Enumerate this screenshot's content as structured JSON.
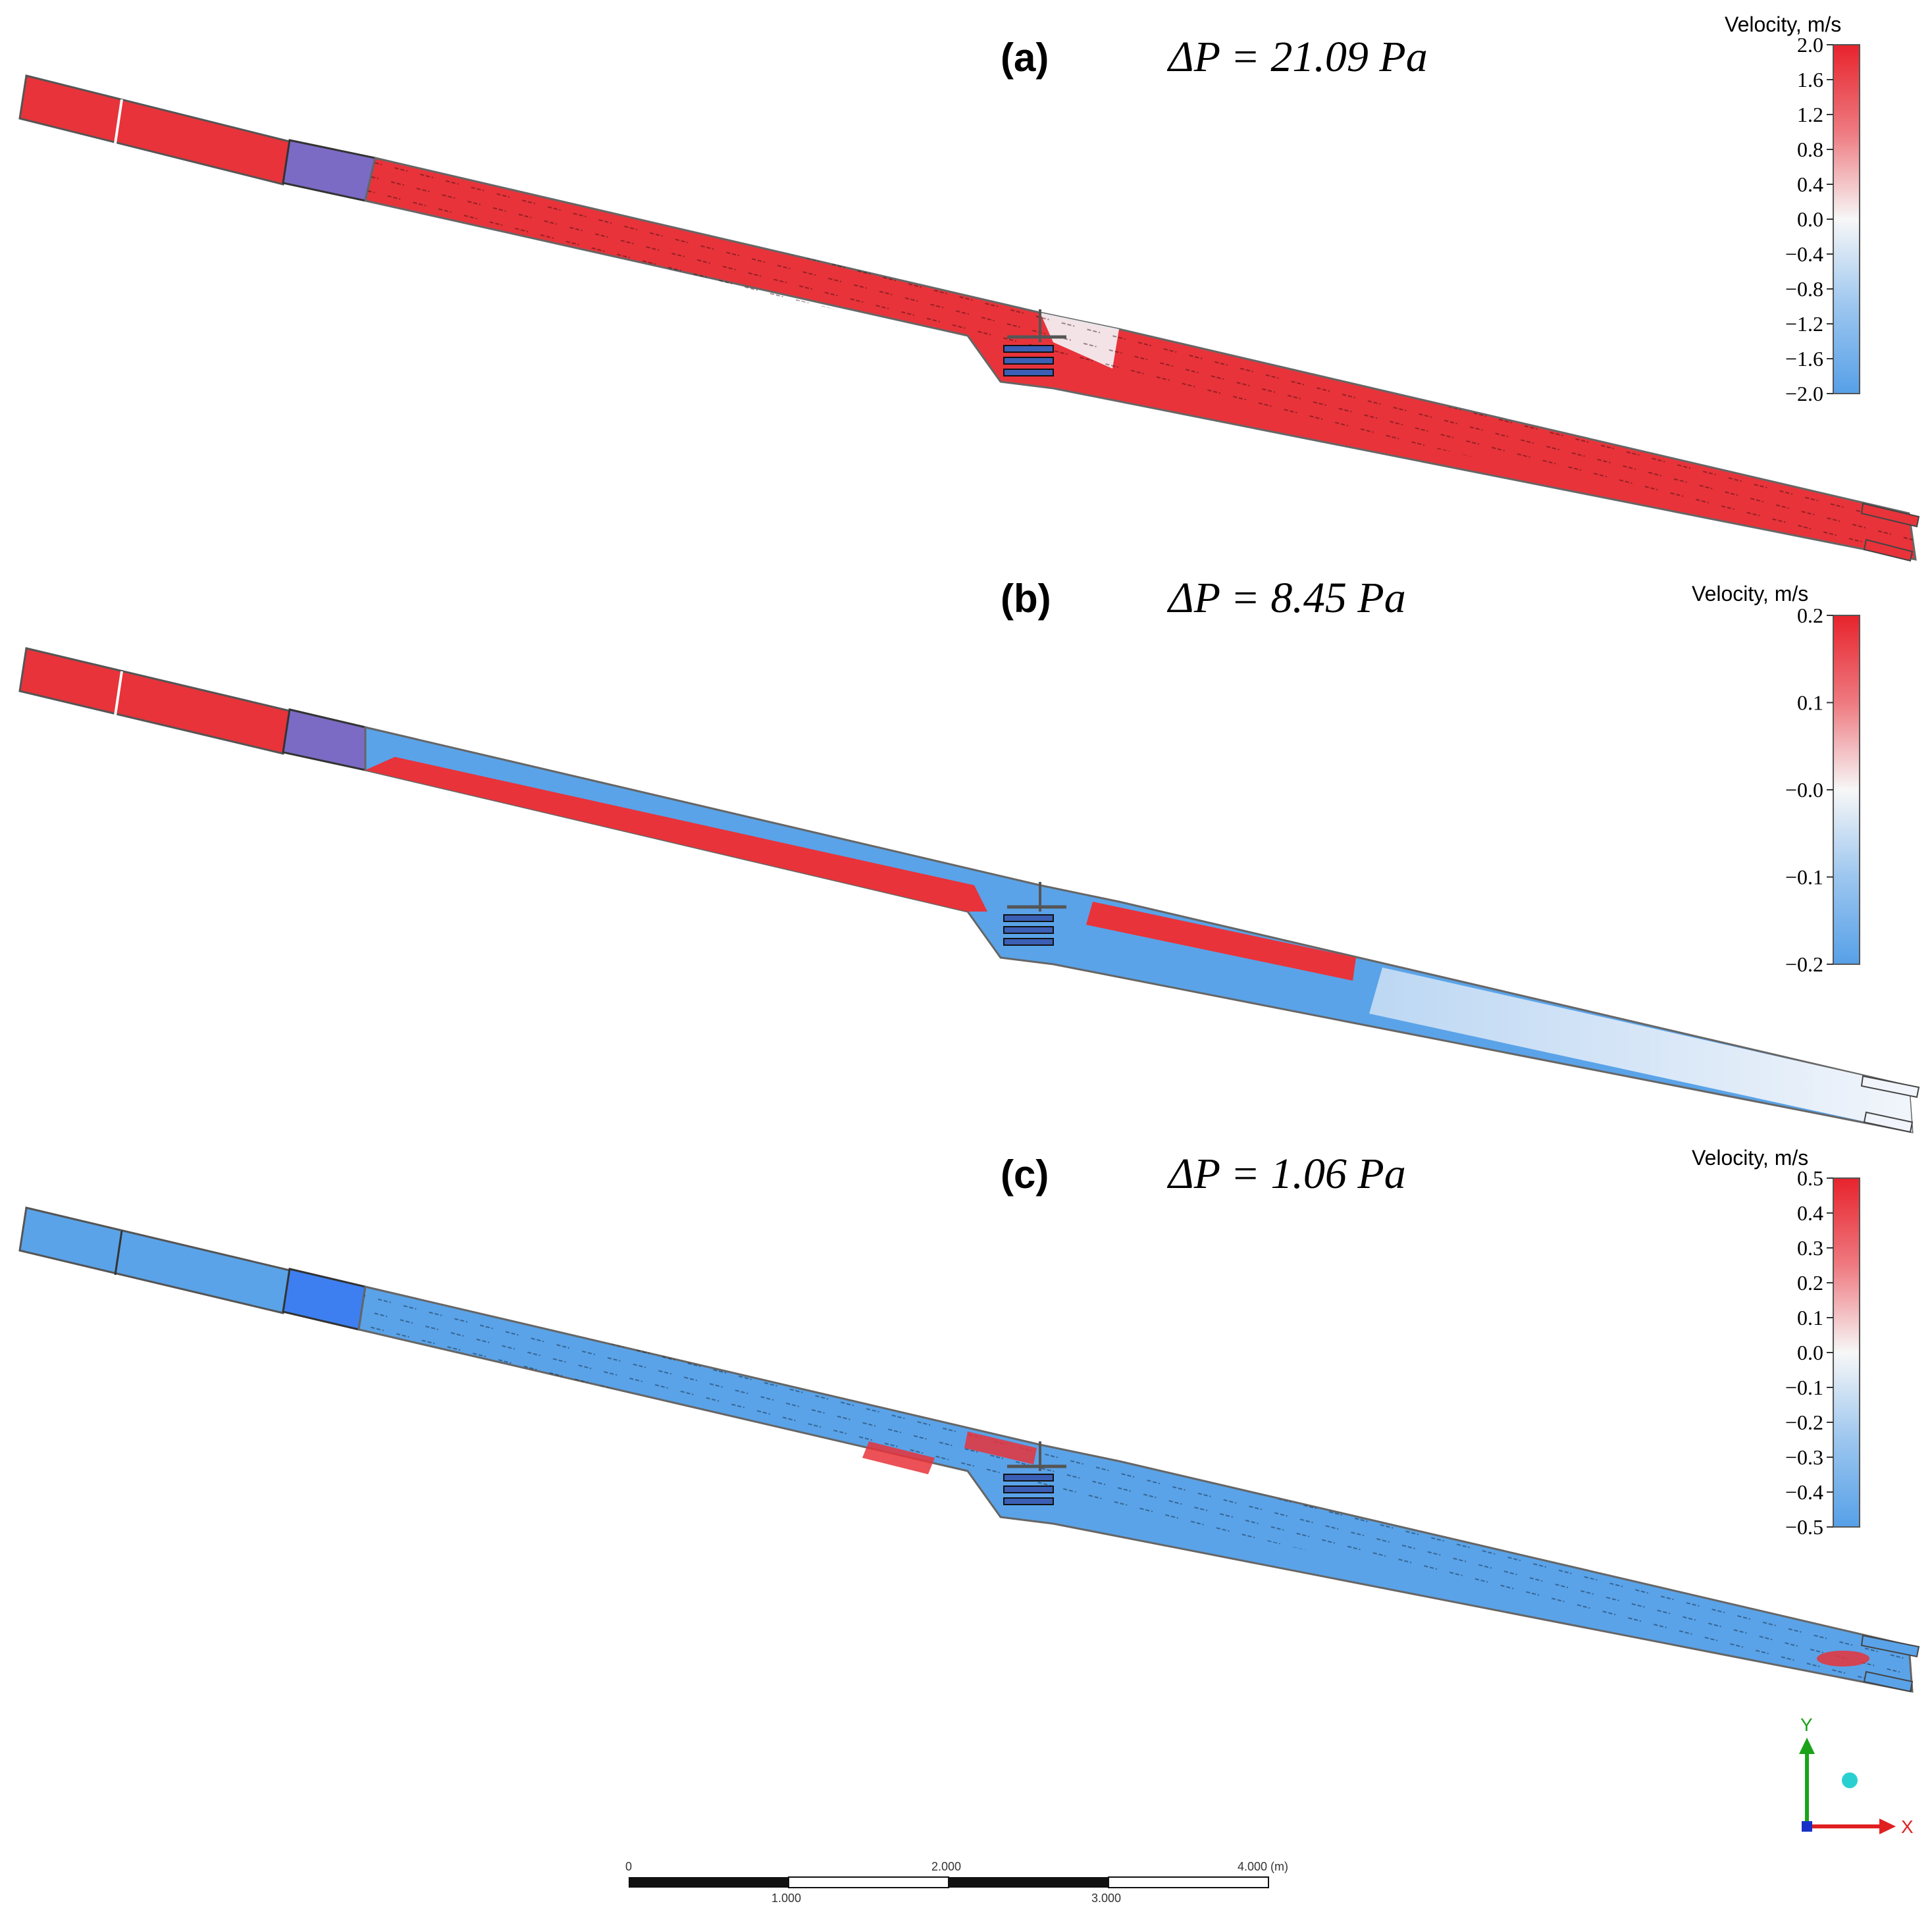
{
  "panels": [
    {
      "id": "a",
      "label": "(a)",
      "pressure_drop": "ΔP = 21.09 Pa",
      "colorbar": {
        "title": "Velocity, m/s",
        "min": -2.0,
        "max": 2.0,
        "ticks": [
          "2.0",
          "1.6",
          "1.2",
          "0.8",
          "0.4",
          "0.0",
          "−0.4",
          "−0.8",
          "−1.2",
          "−1.6",
          "−2.0"
        ]
      },
      "flow": "positive-dominant",
      "colors": {
        "main": "#e8333a",
        "inlet_block": "#7b6bc4",
        "recirculation": "#f4f6fb"
      }
    },
    {
      "id": "b",
      "label": "(b)",
      "pressure_drop": "ΔP = 8.45 Pa",
      "colorbar": {
        "title": "Velocity, m/s",
        "min": -0.2,
        "max": 0.2,
        "ticks": [
          "0.2",
          "0.1",
          "−0.0",
          "−0.1",
          "−0.2"
        ]
      },
      "flow": "mixed",
      "colors": {
        "main": "#e8333a",
        "counter": "#5aa3e8",
        "inlet_block": "#7b6bc4",
        "outlet": "#dce9f7"
      }
    },
    {
      "id": "c",
      "label": "(c)",
      "pressure_drop": "ΔP = 1.06 Pa",
      "colorbar": {
        "title": "Velocity, m/s",
        "min": -0.5,
        "max": 0.5,
        "ticks": [
          "0.5",
          "0.4",
          "0.3",
          "0.2",
          "0.1",
          "0.0",
          "−0.1",
          "−0.2",
          "−0.3",
          "−0.4",
          "−0.5"
        ]
      },
      "flow": "negative-dominant",
      "colors": {
        "main": "#5aa3e8",
        "inlet_block": "#3d7ff0",
        "hotspot": "#e8333a"
      }
    }
  ],
  "axes_triad": {
    "y_label": "Y",
    "x_label": "X",
    "y_color": "#1aa31a",
    "x_color": "#e02020",
    "origin_color": "#1830c8",
    "z_color": "#2ad0d0"
  },
  "scale_bar": {
    "top_labels": [
      "0",
      "2.000",
      "4.000 (m)"
    ],
    "bottom_labels": [
      "1.000",
      "3.000"
    ]
  },
  "colormap": {
    "low": "#5aa3e8",
    "mid": "#f7f7f7",
    "high": "#e8333a"
  }
}
